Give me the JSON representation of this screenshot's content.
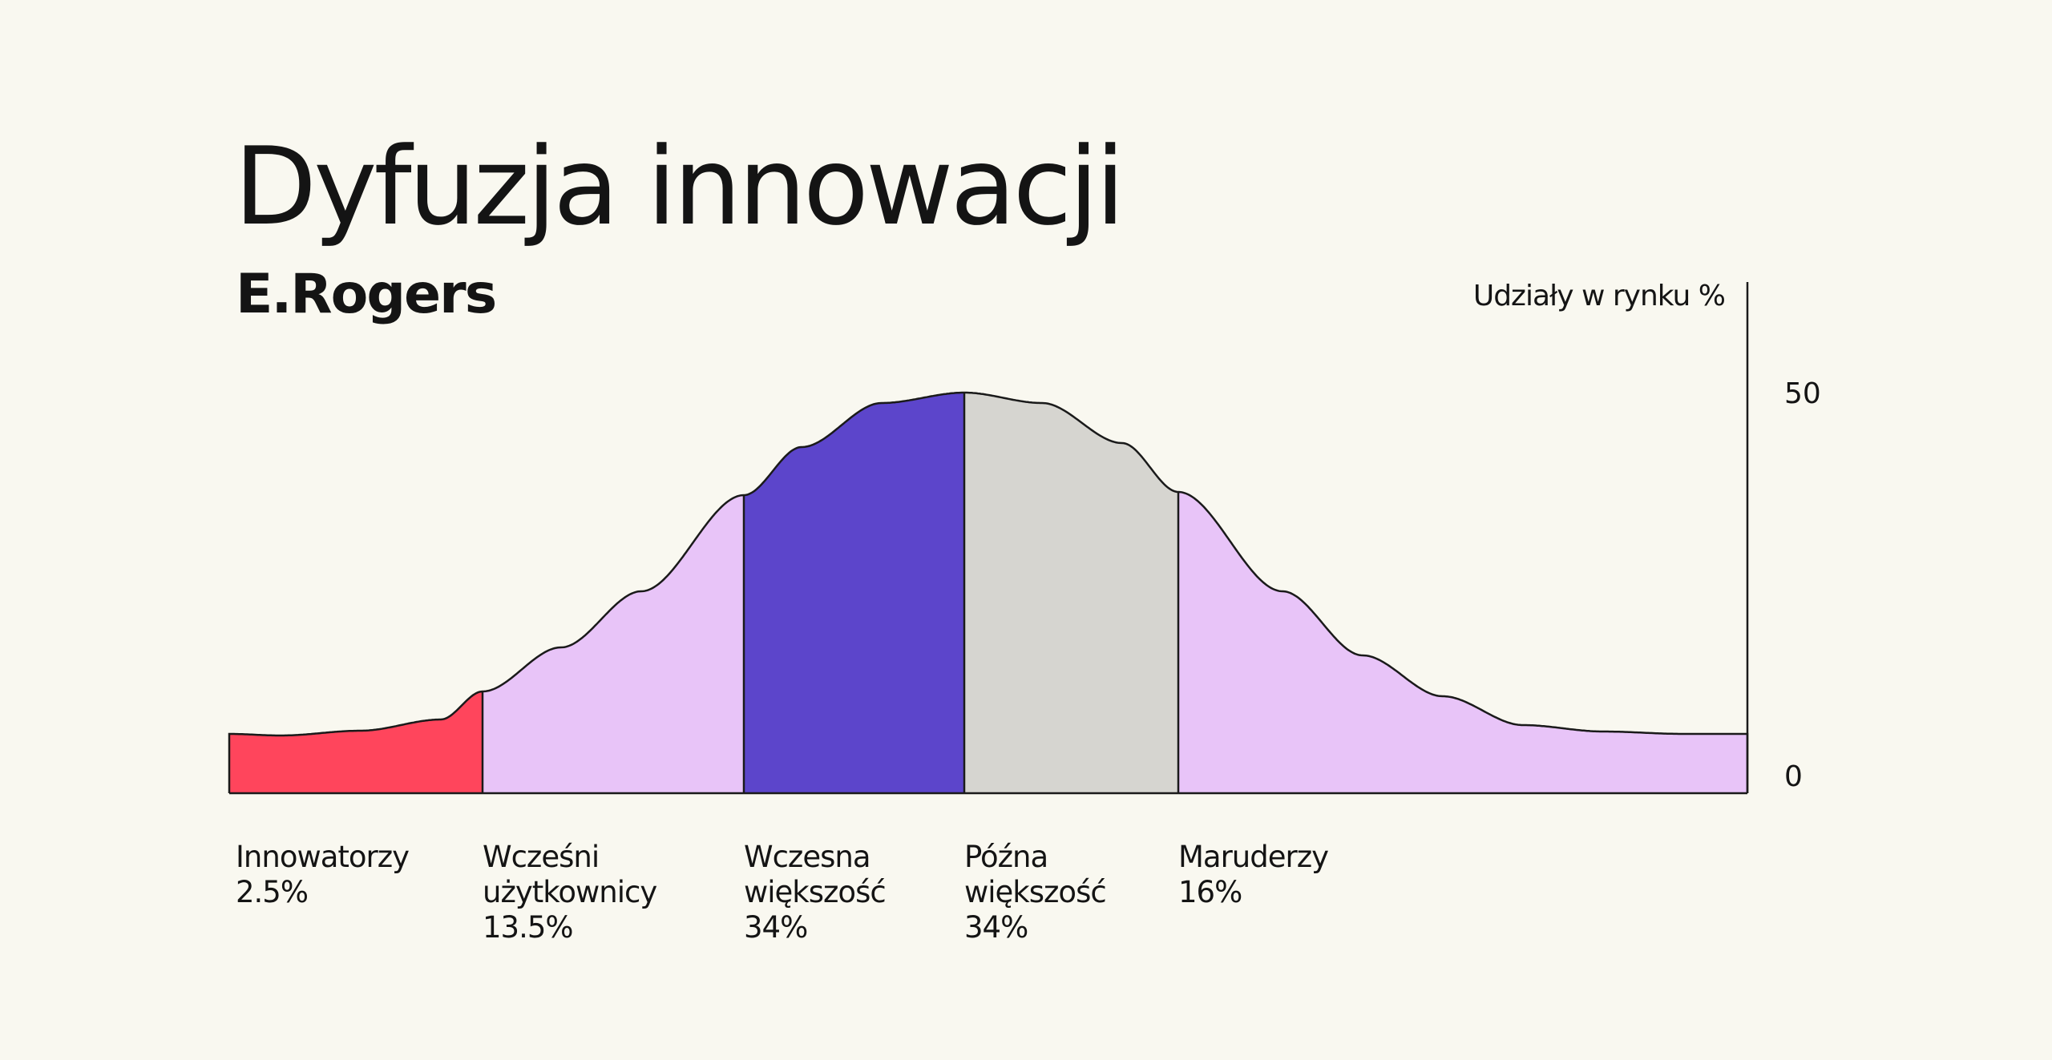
{
  "header": {
    "title": "Dyfuzja innowacji",
    "subtitle": "E.Rogers"
  },
  "colors": {
    "background": "#f9f8f0",
    "outline": "#1a1a1a",
    "innovators": "#ff455c",
    "early_adopters": "#e8c4f8",
    "early_majority": "#5c45cb",
    "late_majority": "#d6d5d0",
    "laggards": "#e8c4f8"
  },
  "chart_data": {
    "type": "area",
    "title": "Dyfuzja innowacji",
    "subtitle": "E.Rogers",
    "ylabel": "Udziały w rynku %",
    "ylim": [
      0,
      50
    ],
    "yticks": [
      "50",
      "0"
    ],
    "grid": false,
    "segments": [
      {
        "label_lines": [
          "Innowatorzy"
        ],
        "value_text": "2.5%",
        "share": 2.5,
        "color_key": "innovators"
      },
      {
        "label_lines": [
          "Wcześni",
          "użytkownicy"
        ],
        "value_text": "13.5%",
        "share": 13.5,
        "color_key": "early_adopters"
      },
      {
        "label_lines": [
          "Wczesna",
          "większość"
        ],
        "value_text": "34%",
        "share": 34,
        "color_key": "early_majority"
      },
      {
        "label_lines": [
          "Późna",
          "większość"
        ],
        "value_text": "34%",
        "share": 34,
        "color_key": "late_majority"
      },
      {
        "label_lines": [
          "Maruderzy"
        ],
        "value_text": "16%",
        "share": 16,
        "color_key": "laggards"
      }
    ]
  }
}
